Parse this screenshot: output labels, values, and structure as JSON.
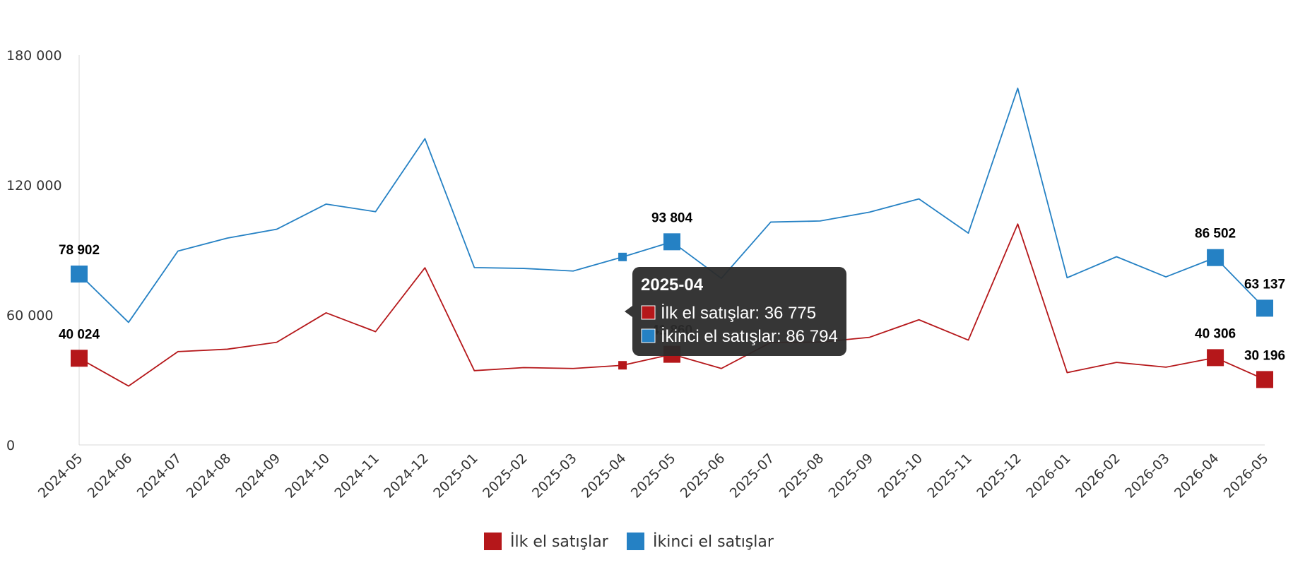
{
  "chart_data": {
    "type": "line",
    "categories": [
      "2024-05",
      "2024-06",
      "2024-07",
      "2024-08",
      "2024-09",
      "2024-10",
      "2024-11",
      "2024-12",
      "2025-01",
      "2025-02",
      "2025-03",
      "2025-04",
      "2025-05",
      "2025-06",
      "2025-07",
      "2025-08",
      "2025-09",
      "2025-10",
      "2025-11",
      "2025-12",
      "2026-01",
      "2026-02",
      "2026-03",
      "2026-04",
      "2026-05"
    ],
    "series": [
      {
        "name": "İlk el satışlar",
        "color": "#b5171a",
        "values": [
          40024,
          27200,
          43100,
          44200,
          47400,
          61000,
          52300,
          81800,
          34300,
          35700,
          35300,
          36775,
          41860,
          35300,
          47300,
          47500,
          49700,
          57800,
          48400,
          102000,
          33400,
          38100,
          35900,
          40306,
          30196
        ]
      },
      {
        "name": "İkinci el satışlar",
        "color": "#2581c4",
        "values": [
          78902,
          56600,
          89500,
          95500,
          99600,
          111200,
          107700,
          141400,
          81900,
          81500,
          80300,
          86794,
          93804,
          76900,
          102900,
          103400,
          107500,
          113600,
          97800,
          164700,
          77200,
          86900,
          77600,
          86502,
          63137
        ]
      }
    ],
    "data_labels": [
      {
        "series": 0,
        "index": 0,
        "text": "40 024"
      },
      {
        "series": 0,
        "index": 12,
        "text": "41 860"
      },
      {
        "series": 0,
        "index": 23,
        "text": "40 306"
      },
      {
        "series": 0,
        "index": 24,
        "text": "30 196"
      },
      {
        "series": 1,
        "index": 0,
        "text": "78 902"
      },
      {
        "series": 1,
        "index": 12,
        "text": "93 804"
      },
      {
        "series": 1,
        "index": 23,
        "text": "86 502"
      },
      {
        "series": 1,
        "index": 24,
        "text": "63 137"
      }
    ],
    "yticks": [
      {
        "value": 0,
        "label": "0"
      },
      {
        "value": 60000,
        "label": "60 000"
      },
      {
        "value": 120000,
        "label": "120 000"
      },
      {
        "value": 180000,
        "label": "180 000"
      }
    ],
    "ylim": [
      0,
      180000
    ],
    "grid": false,
    "legend_position": "bottom-center",
    "title": "",
    "xlabel": "",
    "ylabel": "",
    "tooltip": {
      "title": "2025-04",
      "index": 11,
      "lines": [
        {
          "series": 0,
          "text": "İlk el satışlar: 36 775"
        },
        {
          "series": 1,
          "text": "İkinci el satışlar: 86 794"
        }
      ]
    }
  }
}
